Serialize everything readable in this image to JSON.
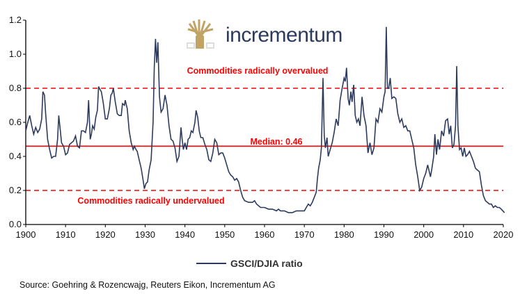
{
  "logo": {
    "text": "incrementum",
    "colors": {
      "tree": "#c2a366",
      "text": "#2c3a5e"
    }
  },
  "source": "Source: Goehring & Rozencwajg, Reuters Eikon, Incrementum AG",
  "chart_data": {
    "type": "line",
    "title": "",
    "xlabel": "",
    "ylabel": "",
    "xlim": [
      1900,
      2020
    ],
    "ylim": [
      0,
      1.2
    ],
    "x_ticks": [
      "1900",
      "1910",
      "1920",
      "1930",
      "1940",
      "1950",
      "1960",
      "1970",
      "1980",
      "1990",
      "2000",
      "2010",
      "2020"
    ],
    "y_ticks": [
      "0.0",
      "0.2",
      "0.4",
      "0.6",
      "0.8",
      "1.0",
      "1.2"
    ],
    "grid": false,
    "legend": "bottom-center",
    "reference_lines": [
      {
        "y": 0.8,
        "style": "dashed",
        "color": "#ff0000",
        "label": "Commodities radically overvalued"
      },
      {
        "y": 0.46,
        "style": "solid",
        "color": "#ff0000",
        "label": "Median: 0.46"
      },
      {
        "y": 0.2,
        "style": "dashed",
        "color": "#ff0000",
        "label": "Commodities radically undervalued"
      }
    ],
    "series": [
      {
        "name": "GSCI/DJIA ratio",
        "color": "#2c3a5e",
        "x": [
          1900,
          1900.5,
          1901,
          1901.5,
          1902,
          1902.5,
          1903,
          1903.5,
          1904,
          1904.3,
          1904.7,
          1905,
          1905.5,
          1906,
          1906.5,
          1907,
          1907.5,
          1908,
          1908.3,
          1908.7,
          1909,
          1909.5,
          1910,
          1910.5,
          1911,
          1911.5,
          1912,
          1912.5,
          1913,
          1913.5,
          1914,
          1914.5,
          1915,
          1915.5,
          1915.8,
          1916.2,
          1916.5,
          1916.8,
          1917.2,
          1917.6,
          1918,
          1918.3,
          1918.7,
          1919,
          1919.5,
          1920,
          1920.5,
          1921,
          1921.4,
          1921.7,
          1922,
          1922.5,
          1923,
          1923.5,
          1924,
          1924.3,
          1924.8,
          1925,
          1925.5,
          1926,
          1926.5,
          1927,
          1927.3,
          1927.7,
          1928,
          1928.5,
          1929,
          1929.5,
          1929.8,
          1930.2,
          1930.6,
          1931,
          1931.5,
          1932,
          1932.3,
          1932.6,
          1932.9,
          1933.2,
          1933.6,
          1934,
          1934.5,
          1935,
          1935.5,
          1936,
          1936.5,
          1937,
          1937.5,
          1938,
          1938.5,
          1939,
          1939.3,
          1939.6,
          1940,
          1940.4,
          1940.8,
          1941.2,
          1941.6,
          1942,
          1942.5,
          1942.8,
          1943.2,
          1943.6,
          1944,
          1944.5,
          1945,
          1945.5,
          1946,
          1946.5,
          1947,
          1947.5,
          1948,
          1948.5,
          1949,
          1949.5,
          1950,
          1950.5,
          1951,
          1951.5,
          1952,
          1952.5,
          1953,
          1953.5,
          1954,
          1954.5,
          1955,
          1956,
          1957,
          1957.5,
          1958,
          1959,
          1960,
          1961,
          1962,
          1963,
          1963.5,
          1964,
          1965,
          1966,
          1967,
          1968,
          1969,
          1970,
          1970.5,
          1971,
          1971.5,
          1972,
          1972.5,
          1973,
          1973.3,
          1973.6,
          1974,
          1974.3,
          1974.7,
          1975,
          1975.3,
          1975.7,
          1976,
          1976.5,
          1977,
          1977.5,
          1978,
          1978.5,
          1979,
          1979.5,
          1980,
          1980.3,
          1980.6,
          1981,
          1981.3,
          1981.7,
          1982,
          1982.4,
          1982.8,
          1983.2,
          1983.6,
          1984,
          1984.5,
          1985,
          1985.5,
          1986,
          1986.5,
          1987,
          1987.5,
          1988,
          1988.5,
          1989,
          1989.5,
          1990,
          1990.3,
          1990.6,
          1990.9,
          1991.2,
          1991.6,
          1992,
          1992.5,
          1993,
          1993.5,
          1994,
          1994.5,
          1995,
          1995.5,
          1996,
          1996.5,
          1997,
          1997.5,
          1998,
          1998.5,
          1999,
          1999.5,
          2000,
          2000.5,
          2001,
          2001.3,
          2001.7,
          2002,
          2002.5,
          2002.8,
          2003.2,
          2003.6,
          2004,
          2004.5,
          2005,
          2005.5,
          2006,
          2006.4,
          2006.8,
          2007.2,
          2007.6,
          2008,
          2008.3,
          2008.6,
          2009,
          2009.4,
          2009.8,
          2010.2,
          2010.6,
          2011,
          2011.5,
          2012,
          2012.5,
          2013,
          2013.5,
          2014,
          2014.5,
          2015,
          2015.5,
          2016,
          2016.5,
          2017,
          2017.5,
          2018,
          2018.5,
          2019,
          2019.5,
          2020.3
        ],
        "y": [
          0.55,
          0.6,
          0.64,
          0.58,
          0.53,
          0.57,
          0.54,
          0.56,
          0.62,
          0.78,
          0.76,
          0.65,
          0.5,
          0.44,
          0.39,
          0.4,
          0.4,
          0.5,
          0.64,
          0.55,
          0.48,
          0.46,
          0.41,
          0.42,
          0.47,
          0.48,
          0.49,
          0.52,
          0.46,
          0.45,
          0.55,
          0.55,
          0.54,
          0.6,
          0.73,
          0.5,
          0.53,
          0.58,
          0.56,
          0.63,
          0.67,
          0.81,
          0.79,
          0.78,
          0.71,
          0.62,
          0.62,
          0.68,
          0.76,
          0.77,
          0.8,
          0.72,
          0.65,
          0.64,
          0.64,
          0.71,
          0.7,
          0.73,
          0.68,
          0.55,
          0.48,
          0.44,
          0.46,
          0.44,
          0.43,
          0.38,
          0.33,
          0.26,
          0.21,
          0.24,
          0.25,
          0.32,
          0.38,
          0.6,
          0.92,
          1.09,
          0.95,
          1.07,
          0.75,
          0.66,
          0.68,
          0.76,
          0.7,
          0.58,
          0.5,
          0.49,
          0.45,
          0.37,
          0.4,
          0.57,
          0.5,
          0.44,
          0.48,
          0.44,
          0.5,
          0.51,
          0.55,
          0.54,
          0.6,
          0.67,
          0.63,
          0.55,
          0.51,
          0.51,
          0.47,
          0.44,
          0.38,
          0.37,
          0.42,
          0.5,
          0.48,
          0.41,
          0.42,
          0.42,
          0.39,
          0.35,
          0.31,
          0.29,
          0.28,
          0.26,
          0.27,
          0.25,
          0.2,
          0.16,
          0.14,
          0.13,
          0.13,
          0.14,
          0.12,
          0.1,
          0.1,
          0.09,
          0.09,
          0.08,
          0.09,
          0.08,
          0.08,
          0.07,
          0.07,
          0.08,
          0.08,
          0.08,
          0.1,
          0.12,
          0.11,
          0.13,
          0.16,
          0.19,
          0.27,
          0.33,
          0.38,
          0.45,
          0.86,
          0.52,
          0.45,
          0.51,
          0.4,
          0.44,
          0.48,
          0.54,
          0.62,
          0.58,
          0.73,
          0.8,
          0.86,
          0.84,
          0.92,
          0.74,
          0.7,
          0.78,
          0.72,
          0.82,
          0.64,
          0.6,
          0.62,
          0.58,
          0.75,
          0.64,
          0.58,
          0.42,
          0.48,
          0.41,
          0.45,
          0.62,
          0.6,
          0.68,
          0.66,
          0.75,
          0.78,
          1.16,
          0.8,
          0.8,
          0.86,
          0.74,
          0.75,
          0.74,
          0.65,
          0.6,
          0.62,
          0.57,
          0.58,
          0.55,
          0.55,
          0.5,
          0.45,
          0.35,
          0.28,
          0.2,
          0.22,
          0.27,
          0.3,
          0.35,
          0.32,
          0.28,
          0.32,
          0.4,
          0.53,
          0.41,
          0.5,
          0.44,
          0.55,
          0.52,
          0.61,
          0.62,
          0.53,
          0.58,
          0.45,
          0.47,
          0.58,
          0.93,
          0.58,
          0.44,
          0.45,
          0.4,
          0.45,
          0.4,
          0.41,
          0.43,
          0.4,
          0.37,
          0.33,
          0.32,
          0.31,
          0.23,
          0.17,
          0.14,
          0.13,
          0.12,
          0.12,
          0.1,
          0.11,
          0.1,
          0.1,
          0.09,
          0.07
        ]
      }
    ]
  }
}
